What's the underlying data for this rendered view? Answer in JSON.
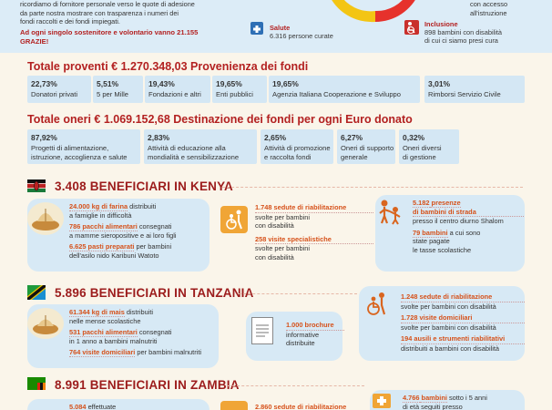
{
  "top": {
    "intro_line1": "ricordiamo di fornitore personale verso le quote di adesione",
    "intro_line2": "da parte nostra mostrare con trasparenza i numeri dei",
    "intro_line3": "fondi raccolti e dei fondi impiegati.",
    "thanks_line1": "Ad ogni singolo sostenitore e volontario vanno 21.155",
    "thanks_line2": "GRAZIE!",
    "health_label": "Salute",
    "health_text": "6.316 persone curate",
    "access_line1": "con accesso",
    "access_line2": "all'istruzione",
    "inclusion_label": "Inclusione",
    "inclusion_line1": "898 bambini con disabilità",
    "inclusion_line2": "di cui ci siamo presi cura"
  },
  "income": {
    "heading": "Totale proventi € 1.270.348,03 Provenienza dei fondi",
    "cells": [
      {
        "pct": "22,73%",
        "label": "Donatori privati"
      },
      {
        "pct": "5,51%",
        "label": "5 per Mille"
      },
      {
        "pct": "19,43%",
        "label": "Fondazioni e altri"
      },
      {
        "pct": "19,65%",
        "label": "Enti pubblici"
      },
      {
        "pct": "19,65%",
        "label": "Agenzia Italiana Cooperazione e Sviluppo"
      },
      {
        "pct": "3,01%",
        "label": "Rimborsi Servizio Civile"
      }
    ]
  },
  "expenses": {
    "heading": "Totale oneri € 1.069.152,68 Destinazione dei fondi per ogni Euro donato",
    "cells": [
      {
        "pct": "87,92%",
        "line1": "Progetti di alimentazione,",
        "line2": "istruzione, accoglienza e salute"
      },
      {
        "pct": "2,83%",
        "line1": "Attività di educazione alla",
        "line2": "mondialità e sensibilizzazione"
      },
      {
        "pct": "2,65%",
        "line1": "Attività di promozione",
        "line2": "e raccolta fondi"
      },
      {
        "pct": "6,27%",
        "line1": "Oneri di supporto",
        "line2": "generale"
      },
      {
        "pct": "0,32%",
        "line1": "Oneri diversi",
        "line2": "di gestione"
      }
    ]
  },
  "kenya": {
    "heading": "3.408 BENEFICIARI IN KENYA",
    "food": {
      "l1a": "24.000 kg di farina",
      "l1b": " distribuiti",
      "l2": "a famiglie in difficoltà",
      "l3a": "786 pacchi alimentari",
      "l3b": " consegnati",
      "l4": "a mamme sieropositive e ai loro figli",
      "l5a": "6.625 pasti preparati",
      "l5b": " per bambini",
      "l6": "dell'asilo nido Karibuni Watoto"
    },
    "rehab": {
      "l1": "1.748 sedute di riabilitazione",
      "l2": "svolte per bambini",
      "l3": "con disabilità",
      "l4": "258 visite specialistiche",
      "l5": "svolte per bambini",
      "l6": "con disabilità"
    },
    "street": {
      "l1a": "5.182",
      "l1b": " presenze",
      "l2": "di bambini di strada",
      "l3": "presso il centro diurno Shalom",
      "l4a": "79 bambini",
      "l4b": " a cui sono",
      "l5": "state pagate",
      "l6": "le tasse scolastiche"
    }
  },
  "tanzania": {
    "heading": "5.896 BENEFICIARI IN TANZANIA",
    "food": {
      "l1a": "61.344 kg di mais",
      "l1b": " distribuiti",
      "l2": "nelle mense scolastiche",
      "l3a": "531 pacchi alimentari",
      "l3b": " consegnati",
      "l4": "in 1 anno a bambini malnutriti",
      "l5a": "764 visite domiciliari",
      "l5b": " per bambini malnutriti"
    },
    "brochure": {
      "l1": "1.000 brochure",
      "l2": "informative",
      "l3": "distribuite"
    },
    "rehab": {
      "l1": "1.248 sedute di riabilitazione",
      "l2": "svolte per bambini con disabilità",
      "l3": "1.728 visite domiciliari",
      "l4": "svolte per bambini con disabilità",
      "l5": "194 ausili e strumenti riabilitativi",
      "l6": "distribuiti a bambini con disabilità"
    }
  },
  "zambia": {
    "heading": "8.991 BENEFICIARI IN ZAMBIA",
    "food_partial": "5.084 ",
    "food_partial2": "effettuate",
    "rehab_partial": "2.860 sedute di riabilitazione",
    "kids": {
      "l1a": "4.766",
      "l1b": " bambini",
      "l1c": " sotto i 5 anni",
      "l2": "di età seguiti presso"
    }
  },
  "colors": {
    "accent_red": "#b32121",
    "accent_orange": "#e15b12",
    "panel_blue": "#d4e7f4",
    "icon_orange": "#f0a536"
  }
}
